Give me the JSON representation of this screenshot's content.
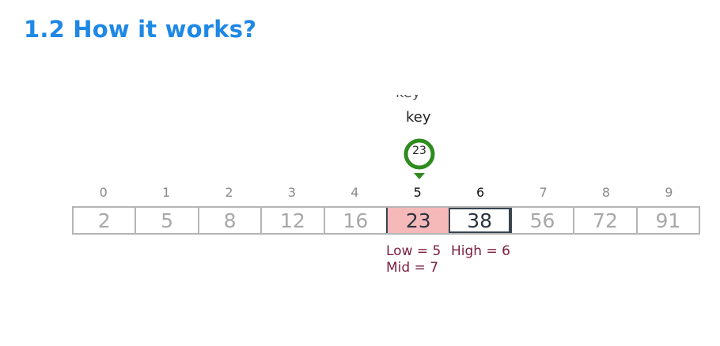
{
  "heading": "1.2 How it works?",
  "key": {
    "label": "key",
    "ghost_label": "key",
    "value": "23",
    "marker_color": "#2e8b1e"
  },
  "array": {
    "indices": [
      "0",
      "1",
      "2",
      "3",
      "4",
      "5",
      "6",
      "7",
      "8",
      "9"
    ],
    "values": [
      "2",
      "5",
      "8",
      "12",
      "16",
      "23",
      "38",
      "56",
      "72",
      "91"
    ],
    "low_index": 5,
    "high_index": 6,
    "highlight_color": "#f6b9b9"
  },
  "pointers": {
    "low": "Low = 5",
    "high": "High = 6",
    "mid": "Mid = 7"
  },
  "colors": {
    "heading": "#1e88e5",
    "pointer_text": "#7b1e3c",
    "cell_border": "#b5b5b5",
    "active_border": "#37454f"
  }
}
